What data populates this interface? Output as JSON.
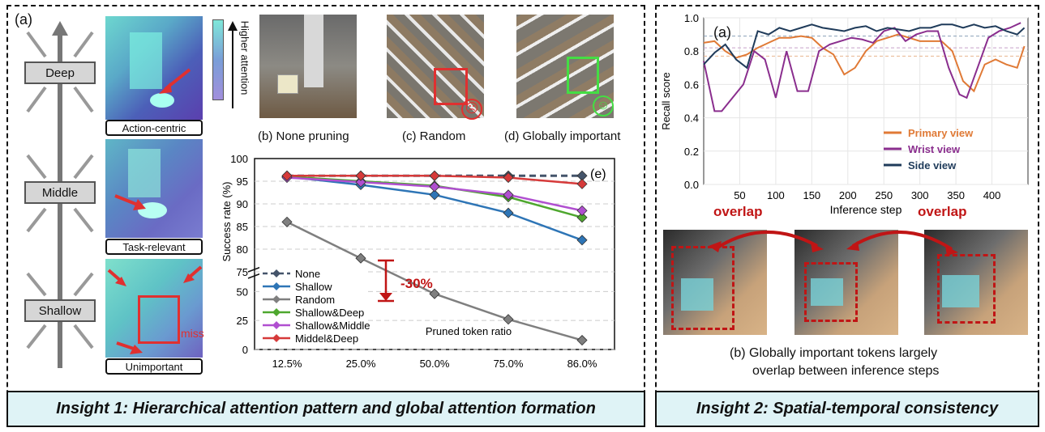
{
  "left": {
    "label_a": "(a)",
    "layers": [
      "Deep",
      "Middle",
      "Shallow"
    ],
    "tags": [
      "Action-centric",
      "Task-relevant",
      "Unimportant"
    ],
    "miss": "miss",
    "attention_label": "Higher attention",
    "captions": {
      "b": "(b) None pruning",
      "c": "(c) Random",
      "d": "(d) Globally important"
    },
    "insight": "Insight 1: Hierarchical attention pattern and global attention formation"
  },
  "right": {
    "label_a": "(a)",
    "overlap": "overlap",
    "caption_line1": "(b) Globally important tokens largely",
    "caption_line2": "overlap between inference steps",
    "insight": "Insight 2: Spatial-temporal consistency"
  },
  "chart_data": [
    {
      "type": "line",
      "panel_label": "(e)",
      "xlabel": "Pruned token ratio",
      "ylabel": "Success rate (%)",
      "categories": [
        "12.5%",
        "25.0%",
        "50.0%",
        "75.0%",
        "86.0%"
      ],
      "y_ticks_upper": [
        75,
        80,
        85,
        90,
        95,
        100
      ],
      "y_ticks_lower": [
        0,
        25,
        50
      ],
      "axis_break": true,
      "annotation": "-30%",
      "series": [
        {
          "name": "None",
          "values": [
            96.2,
            96.2,
            96.2,
            96.2,
            96.2
          ],
          "color": "#44546a",
          "dashed": true
        },
        {
          "name": "Shallow",
          "values": [
            96.0,
            94.2,
            92.0,
            88.0,
            82.0
          ],
          "color": "#2e75b6"
        },
        {
          "name": "Random",
          "values": [
            86.0,
            78.0,
            48.0,
            26.0,
            8.0
          ],
          "color": "#7f7f7f"
        },
        {
          "name": "Shallow&Deep",
          "values": [
            96.0,
            95.0,
            94.0,
            91.5,
            87.0
          ],
          "color": "#4ea72e"
        },
        {
          "name": "Shallow&Middle",
          "values": [
            95.8,
            94.8,
            93.8,
            92.0,
            88.5
          ],
          "color": "#b04fd0"
        },
        {
          "name": "Middel&Deep",
          "values": [
            96.2,
            96.2,
            96.2,
            95.8,
            94.4
          ],
          "color": "#d63a3a"
        }
      ]
    },
    {
      "type": "line",
      "xlabel": "Inference step",
      "ylabel": "Recall score",
      "xlim": [
        0,
        450
      ],
      "ylim": [
        0.0,
        1.0
      ],
      "x_ticks": [
        50,
        100,
        150,
        200,
        250,
        300,
        350,
        400
      ],
      "y_ticks": [
        0.0,
        0.2,
        0.4,
        0.6,
        0.8,
        1.0
      ],
      "grid": true,
      "legend": "bottom-right",
      "reference_lines": [
        0.89,
        0.82,
        0.77
      ],
      "series": [
        {
          "name": "Primary view",
          "color": "#e07a36",
          "x": [
            0,
            15,
            30,
            45,
            60,
            75,
            90,
            105,
            120,
            135,
            150,
            165,
            180,
            195,
            210,
            225,
            240,
            255,
            270,
            285,
            300,
            315,
            330,
            345,
            360,
            375,
            390,
            405,
            420,
            435,
            445
          ],
          "y": [
            0.85,
            0.86,
            0.8,
            0.76,
            0.78,
            0.82,
            0.85,
            0.88,
            0.88,
            0.89,
            0.88,
            0.82,
            0.78,
            0.66,
            0.7,
            0.8,
            0.86,
            0.88,
            0.9,
            0.88,
            0.86,
            0.86,
            0.86,
            0.8,
            0.62,
            0.56,
            0.72,
            0.75,
            0.72,
            0.7,
            0.83
          ]
        },
        {
          "name": "Wrist view",
          "color": "#8a2e8e",
          "x": [
            0,
            15,
            25,
            40,
            55,
            70,
            85,
            100,
            115,
            130,
            145,
            160,
            175,
            190,
            205,
            220,
            235,
            250,
            265,
            280,
            295,
            310,
            325,
            340,
            355,
            365,
            380,
            395,
            410,
            425,
            440
          ],
          "y": [
            0.74,
            0.44,
            0.44,
            0.52,
            0.6,
            0.8,
            0.75,
            0.52,
            0.8,
            0.56,
            0.56,
            0.8,
            0.84,
            0.86,
            0.88,
            0.87,
            0.85,
            0.92,
            0.94,
            0.86,
            0.9,
            0.92,
            0.92,
            0.7,
            0.54,
            0.52,
            0.7,
            0.88,
            0.92,
            0.94,
            0.97
          ]
        },
        {
          "name": "Side view",
          "color": "#1f3b5a",
          "x": [
            0,
            15,
            30,
            45,
            60,
            75,
            90,
            105,
            120,
            135,
            150,
            165,
            180,
            195,
            210,
            225,
            240,
            255,
            270,
            285,
            300,
            315,
            330,
            345,
            360,
            375,
            390,
            405,
            420,
            435,
            445
          ],
          "y": [
            0.72,
            0.79,
            0.84,
            0.75,
            0.7,
            0.92,
            0.9,
            0.94,
            0.92,
            0.94,
            0.96,
            0.94,
            0.93,
            0.92,
            0.94,
            0.95,
            0.92,
            0.94,
            0.93,
            0.92,
            0.94,
            0.94,
            0.96,
            0.96,
            0.94,
            0.96,
            0.94,
            0.95,
            0.92,
            0.9,
            0.94
          ]
        }
      ]
    }
  ]
}
